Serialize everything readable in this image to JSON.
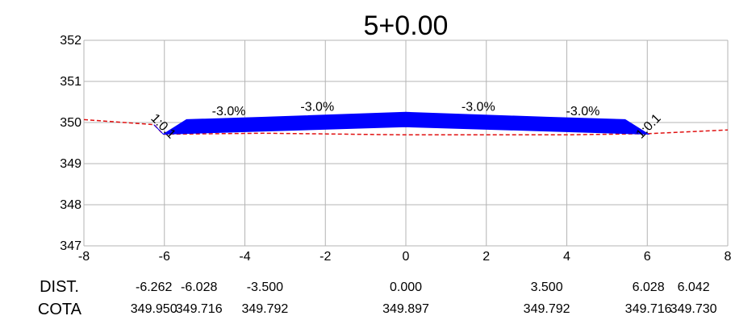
{
  "title": "5+0.00",
  "chart_data": {
    "type": "cross-section",
    "title": "5+0.00",
    "xlim": [
      -8,
      8
    ],
    "ylim": [
      347,
      352
    ],
    "x_ticks": [
      "-8",
      "-6",
      "-4",
      "-2",
      "0",
      "2",
      "4",
      "6",
      "8"
    ],
    "y_ticks": [
      "352",
      "351",
      "350",
      "349",
      "348",
      "347"
    ],
    "grid": true,
    "terrain_line": {
      "color": "#e01010",
      "style": "dashed",
      "points": [
        [
          -8,
          350.07
        ],
        [
          -6.26,
          349.95
        ],
        [
          -6.03,
          349.716
        ],
        [
          -3.5,
          349.74
        ],
        [
          0,
          349.7
        ],
        [
          4,
          349.7
        ],
        [
          6.04,
          349.73
        ],
        [
          8,
          349.82
        ]
      ]
    },
    "pavement": {
      "color": "#0000ff",
      "top": [
        [
          -6.262,
          349.95
        ],
        [
          -6.028,
          349.716
        ],
        [
          -5.45,
          350.07
        ],
        [
          -3.5,
          350.13
        ],
        [
          0,
          350.25
        ],
        [
          3.5,
          350.13
        ],
        [
          5.45,
          350.07
        ],
        [
          6.028,
          349.716
        ]
      ],
      "bottom": [
        [
          6.028,
          349.716
        ],
        [
          3.5,
          349.792
        ],
        [
          0,
          349.897
        ],
        [
          -3.5,
          349.792
        ],
        [
          -6.028,
          349.716
        ]
      ]
    },
    "slope_labels": [
      {
        "text": "-3.0%",
        "x": -4.4,
        "y": 350.18
      },
      {
        "text": "-3.0%",
        "x": -2.2,
        "y": 350.28
      },
      {
        "text": "-3.0%",
        "x": 1.8,
        "y": 350.28
      },
      {
        "text": "-3.0%",
        "x": 4.4,
        "y": 350.18
      }
    ],
    "side_slope_labels": [
      {
        "text": "1:0.1",
        "x": -6.1,
        "y": 349.84,
        "angle": 45
      },
      {
        "text": "1:0.1",
        "x": 6.1,
        "y": 349.84,
        "angle": -45
      }
    ]
  },
  "table": {
    "dist_label": "DIST.",
    "cota_label": "COTA",
    "columns": [
      {
        "x": -6.262,
        "dist": "-6.262",
        "cota": "349.950"
      },
      {
        "x": -6.028,
        "dist": "-6.028",
        "cota": "349.716"
      },
      {
        "x": -3.5,
        "dist": "-3.500",
        "cota": "349.792"
      },
      {
        "x": 0,
        "dist": "0.000",
        "cota": "349.897"
      },
      {
        "x": 3.5,
        "dist": "3.500",
        "cota": "349.792"
      },
      {
        "x": 6.028,
        "dist": "6.028",
        "cota": "349.716"
      },
      {
        "x": 6.042,
        "dist": "6.042",
        "cota": "349.730"
      }
    ]
  }
}
